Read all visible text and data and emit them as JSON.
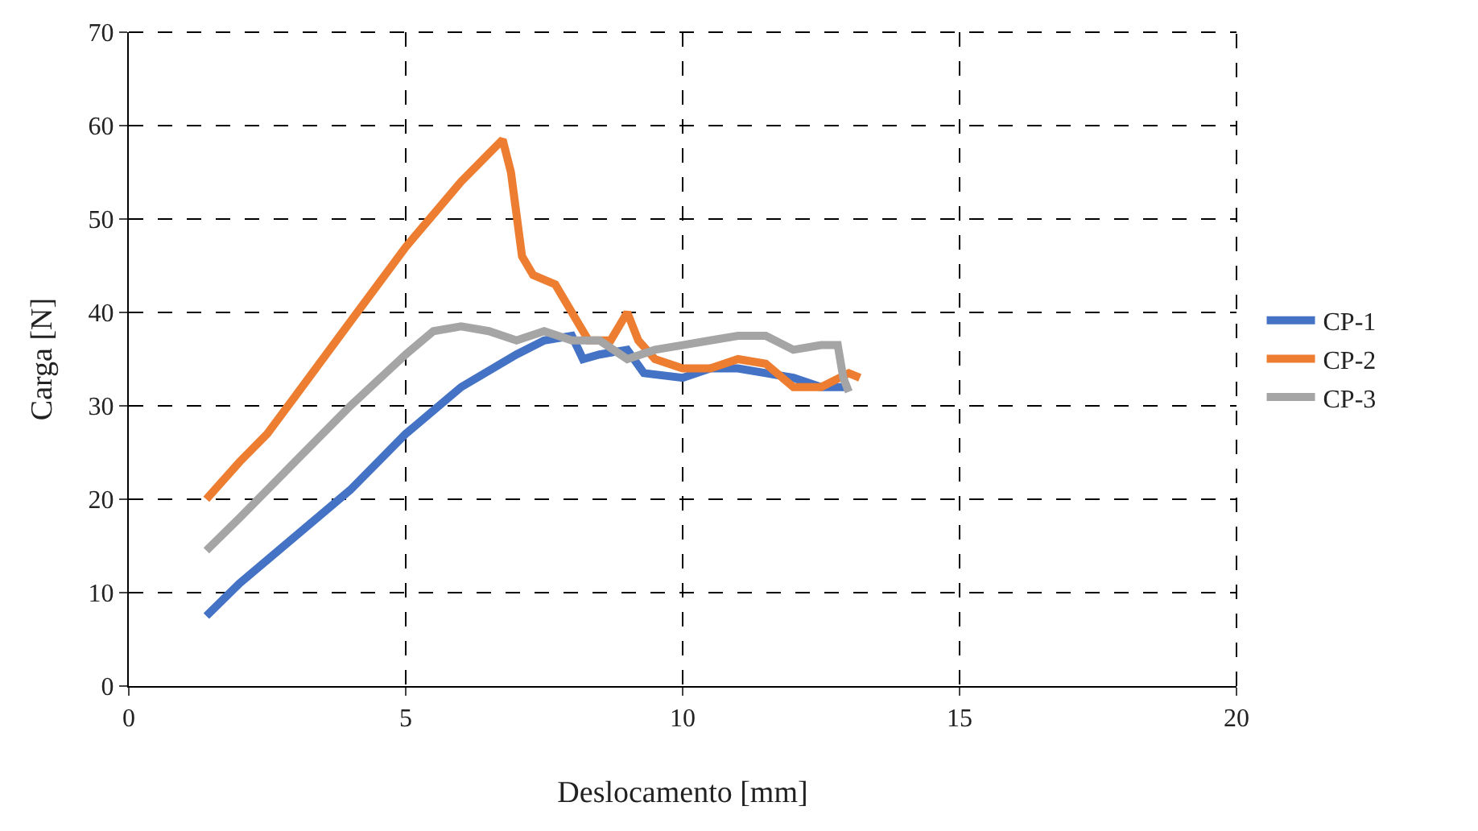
{
  "chart_data": {
    "type": "line",
    "xlabel": "Deslocamento [mm]",
    "ylabel": "Carga [N]",
    "xlim": [
      0,
      20
    ],
    "xticks": [
      0,
      5,
      10,
      15,
      20
    ],
    "ylim": [
      0,
      70
    ],
    "yticks": [
      0,
      10,
      20,
      30,
      40,
      50,
      60,
      70
    ],
    "grid": true,
    "legend": "right",
    "marker": "none",
    "line_style": "solid",
    "series": [
      {
        "name": "CP-1",
        "color": "#4472c4",
        "x": [
          1.4,
          2,
          3,
          4,
          5,
          6,
          7,
          7.5,
          8,
          8.2,
          8.5,
          9,
          9.3,
          10,
          10.5,
          11,
          11.5,
          12,
          12.5,
          13
        ],
        "values": [
          7.5,
          11,
          16,
          21,
          27,
          32,
          35.5,
          37,
          37.5,
          35,
          35.5,
          36,
          33.5,
          33,
          34,
          34,
          33.5,
          33,
          32,
          32
        ]
      },
      {
        "name": "CP-2",
        "color": "#ed7d31",
        "x": [
          1.4,
          2,
          2.5,
          3,
          4,
          5,
          6,
          6.5,
          6.75,
          6.9,
          7.1,
          7.3,
          7.7,
          8,
          8.3,
          8.7,
          9,
          9.2,
          9.5,
          10,
          10.5,
          11,
          11.5,
          12,
          12.5,
          13,
          13.2
        ],
        "values": [
          20,
          24,
          27,
          31,
          39,
          47,
          54,
          57,
          58.5,
          55,
          46,
          44,
          43,
          40,
          37,
          37,
          40,
          37,
          35,
          34,
          34,
          35,
          34.5,
          32,
          32,
          33.5,
          33
        ]
      },
      {
        "name": "CP-3",
        "color": "#a5a5a5",
        "x": [
          1.4,
          2,
          3,
          4,
          5,
          5.5,
          6,
          6.5,
          7,
          7.5,
          8,
          8.5,
          9,
          9.5,
          10,
          10.5,
          11,
          11.5,
          12,
          12.5,
          12.8,
          12.9,
          13
        ],
        "values": [
          14.5,
          18,
          24,
          30,
          35.5,
          38,
          38.5,
          38,
          37,
          38,
          37,
          37,
          35,
          36,
          36.5,
          37,
          37.5,
          37.5,
          36,
          36.5,
          36.5,
          33,
          31.5
        ]
      }
    ]
  }
}
